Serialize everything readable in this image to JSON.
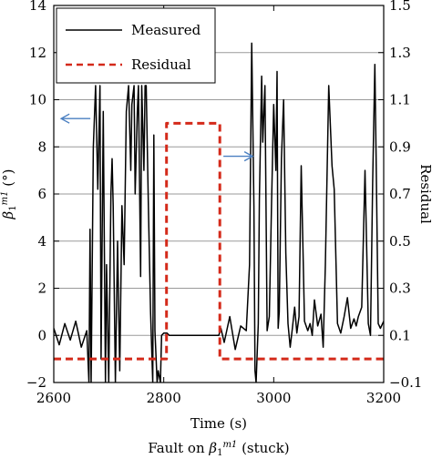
{
  "chart_data": {
    "type": "line",
    "xlabel": "Time (s)",
    "ylabel_left": "β",
    "ylabel_left_sub": "1",
    "ylabel_left_sup": "m1",
    "ylabel_left_unit": " (°)",
    "ylabel_right": "Residual",
    "caption_prefix": "Fault on ",
    "caption_symbol": "β",
    "caption_sub": "1",
    "caption_sup": "m1",
    "caption_suffix": " (stuck)",
    "xlim": [
      2600,
      3200
    ],
    "ylim_left": [
      -2,
      14
    ],
    "ylim_right": [
      -0.1,
      1.5
    ],
    "x_ticks": [
      2600,
      2800,
      3000,
      3200
    ],
    "y_left_ticks": [
      -2,
      0,
      2,
      4,
      6,
      8,
      10,
      12,
      14
    ],
    "y_right_ticks": [
      -0.1,
      0.1,
      0.3,
      0.5,
      0.7,
      0.9,
      1.1,
      1.3,
      1.5
    ],
    "y_left_tick_labels": [
      "−2",
      "0",
      "2",
      "4",
      "6",
      "8",
      "10",
      "12",
      "14"
    ],
    "y_right_tick_labels": [
      "−0.1",
      "0.1",
      "0.3",
      "0.5",
      "0.7",
      "0.9",
      "1.1",
      "1.3",
      "1.5"
    ],
    "x_tick_labels": [
      "2600",
      "2800",
      "3000",
      "3200"
    ],
    "grid": "horizontal",
    "legend_placement": "top-left",
    "series": [
      {
        "name": "Measured",
        "axis": "left",
        "color": "#000000",
        "style": "solid",
        "x": [
          2600,
          2610,
          2620,
          2630,
          2640,
          2650,
          2660,
          2664,
          2666,
          2668,
          2672,
          2676,
          2680,
          2684,
          2686,
          2690,
          2694,
          2696,
          2700,
          2704,
          2706,
          2708,
          2712,
          2716,
          2720,
          2724,
          2728,
          2732,
          2736,
          2740,
          2742,
          2746,
          2748,
          2752,
          2754,
          2758,
          2760,
          2764,
          2766,
          2768,
          2772,
          2776,
          2780,
          2782,
          2784,
          2788,
          2790,
          2794,
          2796,
          2800,
          2806,
          2810,
          2900,
          2904,
          2910,
          2920,
          2930,
          2940,
          2950,
          2956,
          2960,
          2962,
          2964,
          2966,
          2968,
          2972,
          2974,
          2978,
          2980,
          2984,
          2988,
          2992,
          2996,
          3000,
          3004,
          3006,
          3008,
          3010,
          3014,
          3018,
          3022,
          3026,
          3030,
          3034,
          3038,
          3042,
          3046,
          3050,
          3056,
          3062,
          3066,
          3070,
          3074,
          3080,
          3086,
          3090,
          3094,
          3100,
          3106,
          3110,
          3116,
          3122,
          3128,
          3134,
          3140,
          3146,
          3150,
          3154,
          3160,
          3166,
          3172,
          3176,
          3180,
          3184,
          3186,
          3190,
          3194,
          3200
        ],
        "y": [
          0.3,
          -0.4,
          0.5,
          -0.2,
          0.6,
          -0.5,
          0.2,
          -2,
          4.5,
          -2,
          8,
          10.6,
          6.2,
          10.6,
          -1,
          9.5,
          -2,
          3,
          -2,
          6,
          7.5,
          5.5,
          -2,
          4,
          -1.5,
          5.5,
          3,
          9.5,
          10.6,
          7,
          9.8,
          10.6,
          6,
          9.5,
          10.6,
          2.5,
          10.6,
          7,
          10.6,
          10.6,
          5.5,
          1,
          -2,
          8.5,
          0.2,
          -2,
          -1.5,
          -2,
          0,
          0.1,
          0.1,
          0,
          0,
          0.3,
          -0.3,
          0.8,
          -0.6,
          0.4,
          0.2,
          3,
          12.4,
          9,
          5.5,
          -1.5,
          -2,
          0.5,
          5.8,
          11,
          8.2,
          10.6,
          0.2,
          0.8,
          5.5,
          9.8,
          7,
          11.2,
          0.3,
          1,
          7.5,
          10,
          3.5,
          0.5,
          -0.5,
          0.3,
          1.2,
          0.1,
          0.8,
          7.2,
          0.6,
          0.2,
          0.5,
          0,
          1.5,
          0.4,
          0.9,
          -0.5,
          3,
          10.6,
          7.2,
          6.2,
          0.5,
          0.1,
          0.8,
          1.6,
          0.3,
          0.7,
          0.4,
          0.8,
          1.2,
          7,
          0.5,
          0,
          6.5,
          11.5,
          7.8,
          0.5,
          0.3,
          0.6
        ]
      },
      {
        "name": "Residual",
        "axis": "right",
        "color": "#d42a1a",
        "style": "dashed",
        "x": [
          2600,
          2805,
          2805,
          2902,
          2902,
          3200
        ],
        "y": [
          0.0,
          0.0,
          1.0,
          1.0,
          0.0,
          0.0
        ]
      }
    ],
    "annotations": [
      {
        "type": "arrow",
        "direction": "left",
        "color": "#4a7fc1",
        "anchor_x": 2640,
        "anchor_y_left": 9.2
      },
      {
        "type": "arrow",
        "direction": "right",
        "color": "#4a7fc1",
        "anchor_x": 2935,
        "anchor_y_left": 7.6
      }
    ]
  }
}
